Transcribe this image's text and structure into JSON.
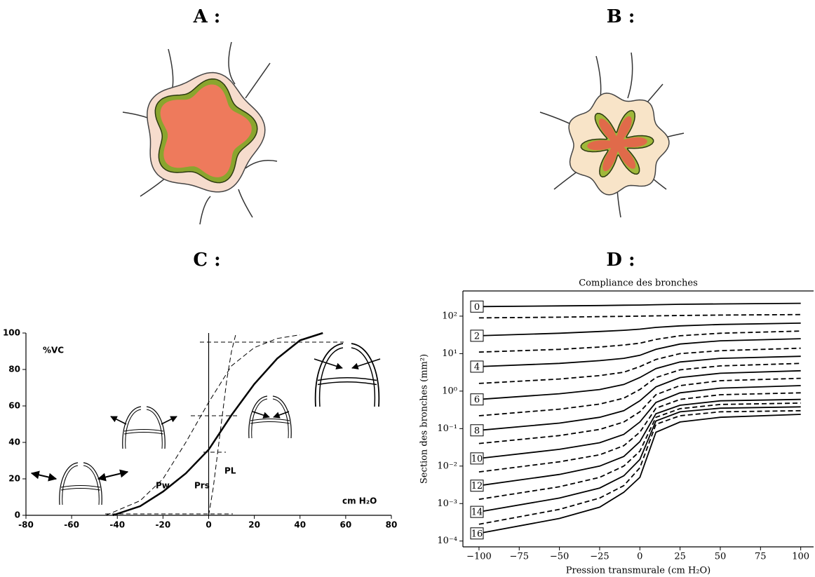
{
  "panels": [
    "A :",
    "B :",
    "C :",
    "D :"
  ],
  "chart_data": [
    {
      "type": "line",
      "ylabel": "%VC",
      "xlabel": "cm H₂O",
      "xlim": [
        -80,
        80
      ],
      "ylim": [
        0,
        100
      ],
      "xticks": [
        -80,
        -60,
        -40,
        -20,
        0,
        20,
        40,
        60,
        80
      ],
      "yticks": [
        0,
        20,
        40,
        60,
        80,
        100
      ],
      "series": [
        {
          "name": "Prs",
          "color": "#000000",
          "style": "solid",
          "linewidth": 2.5,
          "x": [
            -42,
            -30,
            -20,
            -10,
            0,
            10,
            20,
            30,
            40,
            50
          ],
          "values": [
            0,
            5,
            13,
            23,
            36,
            55,
            72,
            86,
            96,
            100
          ]
        },
        {
          "name": "Pw",
          "color": "#000000",
          "style": "dashed",
          "linewidth": 1,
          "x": [
            -45,
            -30,
            -20,
            -10,
            0,
            10,
            20,
            30,
            40
          ],
          "values": [
            0,
            8,
            20,
            40,
            62,
            82,
            92,
            97,
            99
          ]
        },
        {
          "name": "PL",
          "color": "#000000",
          "style": "dashed",
          "linewidth": 1,
          "x": [
            0,
            2,
            4,
            6,
            8,
            10,
            12
          ],
          "values": [
            0,
            15,
            35,
            55,
            75,
            90,
            100
          ]
        }
      ]
    },
    {
      "type": "line",
      "title": "Compliance des bronches",
      "xlabel": "Pression transmurale (cm H₂O)",
      "ylabel": "Section des bronches (mm²)",
      "ylog": true,
      "xlim": [
        -110,
        108
      ],
      "ylim": [
        7e-05,
        470
      ],
      "xticks": [
        {
          "value": -100,
          "label": "−100"
        },
        {
          "value": -75,
          "label": "−75"
        },
        {
          "value": -50,
          "label": "−50"
        },
        {
          "value": -25,
          "label": "−25"
        },
        0,
        25,
        50,
        75,
        100
      ],
      "yticks": [
        {
          "value": 0.0001,
          "label": "10⁻⁴"
        },
        {
          "value": 0.001,
          "label": "10⁻³"
        },
        {
          "value": 0.01,
          "label": "10⁻²"
        },
        {
          "value": 0.1,
          "label": "10⁻¹"
        },
        {
          "value": 1,
          "label": "10⁰"
        },
        {
          "value": 10,
          "label": "10¹"
        },
        {
          "value": 100,
          "label": "10²"
        }
      ],
      "x": [
        -100,
        -50,
        -25,
        -10,
        0,
        10,
        25,
        50,
        100
      ],
      "series": [
        {
          "name": "0",
          "color": "#000000",
          "style": "solid",
          "linewidth": 1.8,
          "values": [
            180,
            188,
            192,
            196,
            198,
            202,
            207,
            212,
            220
          ]
        },
        {
          "color": "#000000",
          "style": "dashed",
          "linewidth": 1.8,
          "values": [
            90,
            94,
            97,
            99,
            100,
            102,
            104,
            107,
            110
          ]
        },
        {
          "name": "2",
          "color": "#000000",
          "style": "solid",
          "linewidth": 1.8,
          "values": [
            30,
            35,
            39,
            42,
            45,
            50,
            55,
            60,
            65
          ]
        },
        {
          "color": "#000000",
          "style": "dashed",
          "linewidth": 1.8,
          "values": [
            11,
            13,
            15,
            17,
            19,
            24,
            30,
            35,
            40
          ]
        },
        {
          "name": "4",
          "color": "#000000",
          "style": "solid",
          "linewidth": 1.8,
          "values": [
            4.5,
            5.5,
            6.5,
            7.5,
            9,
            13,
            18,
            22,
            25
          ]
        },
        {
          "color": "#000000",
          "style": "dashed",
          "linewidth": 1.8,
          "values": [
            1.6,
            2.1,
            2.6,
            3.2,
            4.5,
            7,
            10,
            12,
            14
          ]
        },
        {
          "name": "6",
          "color": "#000000",
          "style": "solid",
          "linewidth": 1.8,
          "values": [
            0.6,
            0.85,
            1.1,
            1.5,
            2.3,
            4,
            6,
            7.5,
            8.5
          ]
        },
        {
          "color": "#000000",
          "style": "dashed",
          "linewidth": 1.8,
          "values": [
            0.22,
            0.33,
            0.45,
            0.65,
            1.1,
            2.3,
            3.7,
            4.7,
            5.5
          ]
        },
        {
          "name": "8",
          "color": "#000000",
          "style": "solid",
          "linewidth": 1.8,
          "values": [
            0.09,
            0.14,
            0.2,
            0.3,
            0.55,
            1.3,
            2.3,
            3,
            3.5
          ]
        },
        {
          "color": "#000000",
          "style": "dashed",
          "linewidth": 1.8,
          "values": [
            0.04,
            0.065,
            0.095,
            0.15,
            0.28,
            0.8,
            1.4,
            1.9,
            2.2
          ]
        },
        {
          "name": "10",
          "color": "#000000",
          "style": "solid",
          "linewidth": 1.8,
          "values": [
            0.016,
            0.028,
            0.042,
            0.07,
            0.15,
            0.5,
            0.9,
            1.2,
            1.4
          ]
        },
        {
          "color": "#000000",
          "style": "dashed",
          "linewidth": 1.8,
          "values": [
            0.007,
            0.013,
            0.02,
            0.035,
            0.08,
            0.35,
            0.6,
            0.8,
            0.9
          ]
        },
        {
          "name": "12",
          "color": "#000000",
          "style": "solid",
          "linewidth": 1.8,
          "values": [
            0.003,
            0.006,
            0.01,
            0.018,
            0.045,
            0.25,
            0.42,
            0.55,
            0.6
          ]
        },
        {
          "color": "#000000",
          "style": "dashed",
          "linewidth": 1.8,
          "values": [
            0.0013,
            0.0028,
            0.005,
            0.01,
            0.025,
            0.2,
            0.34,
            0.44,
            0.48
          ]
        },
        {
          "name": "14",
          "color": "#000000",
          "style": "solid",
          "linewidth": 1.8,
          "values": [
            0.0006,
            0.0014,
            0.0026,
            0.0055,
            0.015,
            0.16,
            0.28,
            0.35,
            0.38
          ]
        },
        {
          "color": "#000000",
          "style": "dashed",
          "linewidth": 1.8,
          "values": [
            0.00028,
            0.0007,
            0.0014,
            0.003,
            0.009,
            0.13,
            0.22,
            0.28,
            0.3
          ]
        },
        {
          "name": "16",
          "color": "#000000",
          "style": "solid",
          "linewidth": 1.8,
          "values": [
            0.00016,
            0.0004,
            0.0008,
            0.002,
            0.005,
            0.08,
            0.15,
            0.2,
            0.24
          ]
        }
      ]
    }
  ]
}
